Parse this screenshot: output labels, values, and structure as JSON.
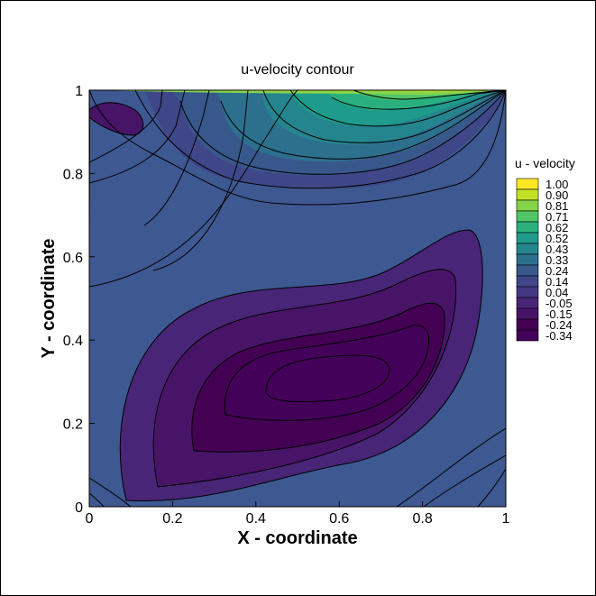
{
  "chart_data": {
    "type": "heatmap",
    "title": "u-velocity contour",
    "xlabel": "X - coordinate",
    "ylabel": "Y - coordinate",
    "xlim": [
      0,
      1
    ],
    "ylim": [
      0,
      1
    ],
    "xticks": [
      "0",
      "0.2",
      "0.4",
      "0.6",
      "0.8",
      "1"
    ],
    "yticks": [
      "0",
      "0.2",
      "0.4",
      "0.6",
      "0.8",
      "1"
    ],
    "xtick_values": [
      0,
      0.2,
      0.4,
      0.6,
      0.8,
      1
    ],
    "ytick_values": [
      0,
      0.2,
      0.4,
      0.6,
      0.8,
      1
    ],
    "legend": {
      "title": "u - velocity",
      "placement": "right",
      "levels": [
        "1.00",
        "0.90",
        "0.81",
        "0.71",
        "0.62",
        "0.52",
        "0.43",
        "0.33",
        "0.24",
        "0.14",
        "0.04",
        "-0.05",
        "-0.15",
        "-0.24",
        "-0.34"
      ],
      "colors": [
        "#fde725",
        "#c2df23",
        "#86d549",
        "#52c569",
        "#2ab07f",
        "#1e9b8a",
        "#25858e",
        "#2d708e",
        "#38588c",
        "#3f4788",
        "#453781",
        "#482576",
        "#481467",
        "#440154",
        "#44015a"
      ]
    }
  }
}
